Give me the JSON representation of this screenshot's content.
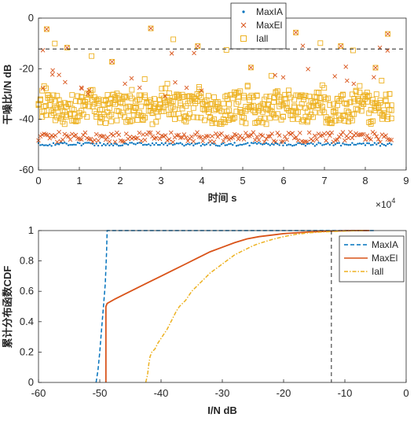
{
  "colors": {
    "maxia": "#0072BD",
    "maxel": "#D95319",
    "iall": "#EDB120",
    "threshold": "#262626",
    "axis": "#262626",
    "background": "#ffffff"
  },
  "chart_data": [
    {
      "type": "scatter",
      "xlabel": "时间 s",
      "ylabel": "干噪比I/N dB",
      "x_exponent_label": "×10",
      "x_exponent": "4",
      "xlim": [
        0,
        9
      ],
      "ylim": [
        -60,
        0
      ],
      "x_ticks": [
        "0",
        "1",
        "2",
        "3",
        "4",
        "5",
        "6",
        "7",
        "8",
        "9"
      ],
      "y_ticks": [
        "-60",
        "-40",
        "-20",
        "0"
      ],
      "x_units": "×10^4 s",
      "x_data_range": [
        0,
        8.64
      ],
      "grid": false,
      "legend_position": "top-center",
      "threshold_line": {
        "y": -12.2,
        "style": "dashed"
      },
      "series": [
        {
          "name": "MaxIA",
          "marker": "dot",
          "y_band": [
            -50.5,
            -49.2
          ],
          "description_values": {
            "typical": -50
          }
        },
        {
          "name": "MaxEl",
          "marker": "x",
          "y_band": [
            -49,
            -45
          ],
          "outliers_y": [
            -21,
            -24,
            -27,
            -29,
            -12.5
          ]
        },
        {
          "name": "Iall",
          "marker": "square",
          "y_band": [
            -42,
            -30
          ],
          "peaks_y": [
            -7,
            -11,
            -12,
            -15,
            -20,
            -25
          ]
        }
      ]
    },
    {
      "type": "line",
      "xlabel": "I/N dB",
      "ylabel": "累计分布函数CDF",
      "xlim": [
        -60,
        0
      ],
      "ylim": [
        0,
        1
      ],
      "x_ticks": [
        "-60",
        "-50",
        "-40",
        "-30",
        "-20",
        "-10",
        "0"
      ],
      "y_ticks": [
        "0",
        "0.2",
        "0.4",
        "0.6",
        "0.8",
        "1"
      ],
      "grid": false,
      "legend_position": "top-right",
      "threshold_line": {
        "x": -12.2,
        "style": "dashed"
      },
      "series": [
        {
          "name": "MaxIA",
          "style": "dashed",
          "x": [
            -50.6,
            -50.3,
            -50.0,
            -49.7,
            -49.4,
            -49.1,
            -48.9,
            -48.8,
            -40,
            -20,
            -5
          ],
          "y": [
            0,
            0.08,
            0.2,
            0.35,
            0.5,
            0.65,
            0.85,
            1.0,
            1.0,
            1.0,
            1.0
          ]
        },
        {
          "name": "MaxEl",
          "style": "solid",
          "x": [
            -49.0,
            -49.0,
            -48.9,
            -48.8,
            -47.5,
            -46,
            -44,
            -42,
            -40,
            -38,
            -36,
            -34,
            -32,
            -30,
            -28,
            -26,
            -24,
            -22,
            -20,
            -18,
            -16,
            -14,
            -12,
            -10,
            -8,
            -6
          ],
          "y": [
            0,
            0.5,
            0.51,
            0.52,
            0.55,
            0.58,
            0.62,
            0.66,
            0.7,
            0.74,
            0.78,
            0.82,
            0.86,
            0.89,
            0.92,
            0.945,
            0.96,
            0.97,
            0.98,
            0.985,
            0.99,
            0.994,
            0.997,
            0.999,
            1.0,
            1.0
          ]
        },
        {
          "name": "Iall",
          "style": "dashdot",
          "x": [
            -42.5,
            -42.2,
            -42.0,
            -41.8,
            -41.5,
            -41.0,
            -40.5,
            -40.0,
            -39.5,
            -39.0,
            -38.5,
            -38.0,
            -37.5,
            -37.0,
            -36.5,
            -36.0,
            -35.5,
            -35.0,
            -34.5,
            -34.0,
            -33.5,
            -33.0,
            -32.0,
            -31.0,
            -30.0,
            -29.0,
            -28.0,
            -27.0,
            -26.0,
            -25.0,
            -24.0,
            -22.0,
            -20.0,
            -18.0,
            -16.0,
            -14.0,
            -12.0,
            -10.0,
            -8.0,
            -7.0
          ],
          "y": [
            0,
            0.05,
            0.12,
            0.17,
            0.2,
            0.22,
            0.26,
            0.29,
            0.32,
            0.35,
            0.39,
            0.43,
            0.47,
            0.5,
            0.52,
            0.54,
            0.57,
            0.6,
            0.62,
            0.64,
            0.66,
            0.68,
            0.72,
            0.75,
            0.78,
            0.81,
            0.84,
            0.86,
            0.88,
            0.9,
            0.915,
            0.94,
            0.96,
            0.975,
            0.985,
            0.99,
            0.994,
            0.997,
            0.999,
            1.0
          ]
        }
      ]
    }
  ]
}
